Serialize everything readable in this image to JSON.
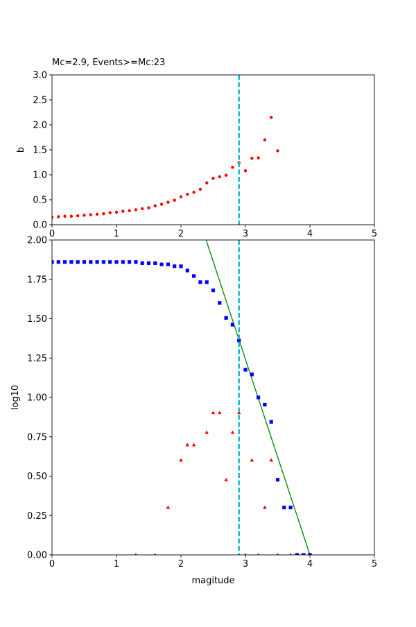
{
  "colors": {
    "b_points": "#ff0000",
    "cumulative_points": "#0000ff",
    "noncumulative_points": "#ff0000",
    "fit_line": "#008000",
    "mc_line": "#17becf"
  },
  "chart_data": [
    {
      "type": "scatter",
      "title": "Mc=2.9, Events>=Mc:23",
      "xlabel": "",
      "ylabel": "b",
      "xlim": [
        0,
        5
      ],
      "ylim": [
        0,
        3
      ],
      "xticks": [
        0,
        1,
        2,
        3,
        4,
        5
      ],
      "xtick_labels": [
        "0",
        "1",
        "2",
        "3",
        "4",
        "5"
      ],
      "yticks": [
        0,
        0.5,
        1,
        1.5,
        2,
        2.5,
        3
      ],
      "ytick_labels": [
        "0.0",
        "0.5",
        "1.0",
        "1.5",
        "2.0",
        "2.5",
        "3.0"
      ],
      "grid": false,
      "mc_line_x": 2.9,
      "series": [
        {
          "marker": "circle",
          "color": "#ff0000",
          "x": [
            0.0,
            0.1,
            0.2,
            0.3,
            0.4,
            0.5,
            0.6,
            0.7,
            0.8,
            0.9,
            1.0,
            1.1,
            1.2,
            1.3,
            1.4,
            1.5,
            1.6,
            1.7,
            1.8,
            1.9,
            2.0,
            2.1,
            2.2,
            2.3,
            2.4,
            2.5,
            2.6,
            2.7,
            2.8,
            2.9,
            3.0,
            3.1,
            3.2,
            3.3,
            3.4,
            3.5
          ],
          "y": [
            0.15,
            0.16,
            0.17,
            0.17,
            0.18,
            0.19,
            0.2,
            0.21,
            0.22,
            0.24,
            0.25,
            0.27,
            0.28,
            0.3,
            0.32,
            0.34,
            0.38,
            0.41,
            0.45,
            0.49,
            0.56,
            0.61,
            0.65,
            0.71,
            0.84,
            0.93,
            0.96,
            0.99,
            1.15,
            1.24,
            1.08,
            1.33,
            1.34,
            1.7,
            2.15,
            1.48
          ]
        }
      ]
    },
    {
      "type": "scatter",
      "title": "",
      "xlabel": "magitude",
      "ylabel": "log10",
      "xlim": [
        0,
        5
      ],
      "ylim": [
        0,
        2
      ],
      "xticks": [
        0,
        1,
        2,
        3,
        4,
        5
      ],
      "xtick_labels": [
        "0",
        "1",
        "2",
        "3",
        "4",
        "5"
      ],
      "yticks": [
        0,
        0.25,
        0.5,
        0.75,
        1,
        1.25,
        1.5,
        1.75,
        2
      ],
      "ytick_labels": [
        "0.00",
        "0.25",
        "0.50",
        "0.75",
        "1.00",
        "1.25",
        "1.50",
        "1.75",
        "2.00"
      ],
      "grid": false,
      "mc_line_x": 2.9,
      "fit_line": {
        "x": [
          2.39,
          4.0
        ],
        "y": [
          2.0,
          0.0
        ],
        "color": "#008000"
      },
      "series": [
        {
          "marker": "square",
          "color": "#0000ff",
          "x": [
            0.0,
            0.1,
            0.2,
            0.3,
            0.4,
            0.5,
            0.6,
            0.7,
            0.8,
            0.9,
            1.0,
            1.1,
            1.2,
            1.3,
            1.4,
            1.5,
            1.6,
            1.7,
            1.8,
            1.9,
            2.0,
            2.1,
            2.2,
            2.3,
            2.4,
            2.5,
            2.6,
            2.7,
            2.8,
            2.9,
            3.0,
            3.1,
            3.2,
            3.3,
            3.4,
            3.5,
            3.6,
            3.7,
            3.8,
            3.9,
            4.0
          ],
          "y": [
            1.86,
            1.86,
            1.86,
            1.86,
            1.86,
            1.86,
            1.86,
            1.86,
            1.86,
            1.86,
            1.86,
            1.86,
            1.86,
            1.86,
            1.853,
            1.853,
            1.853,
            1.845,
            1.845,
            1.833,
            1.833,
            1.806,
            1.771,
            1.732,
            1.732,
            1.68,
            1.6,
            1.505,
            1.462,
            1.362,
            1.176,
            1.146,
            1.0,
            0.954,
            0.845,
            0.477,
            0.301,
            0.301,
            0.0,
            0.0,
            0.0
          ]
        },
        {
          "marker": "triangle",
          "color": "#ff0000",
          "x": [
            1.3,
            1.6,
            1.8,
            2.0,
            2.1,
            2.2,
            2.4,
            2.5,
            2.6,
            2.7,
            2.8,
            2.9,
            3.0,
            3.1,
            3.2,
            3.3,
            3.4,
            3.5,
            3.7,
            3.9
          ],
          "y": [
            0.0,
            0.0,
            0.301,
            0.602,
            0.699,
            0.699,
            0.778,
            0.903,
            0.903,
            0.477,
            0.778,
            0.903,
            0.0,
            0.602,
            0.0,
            0.301,
            0.602,
            0.0,
            0.0,
            0.0
          ]
        }
      ]
    }
  ]
}
